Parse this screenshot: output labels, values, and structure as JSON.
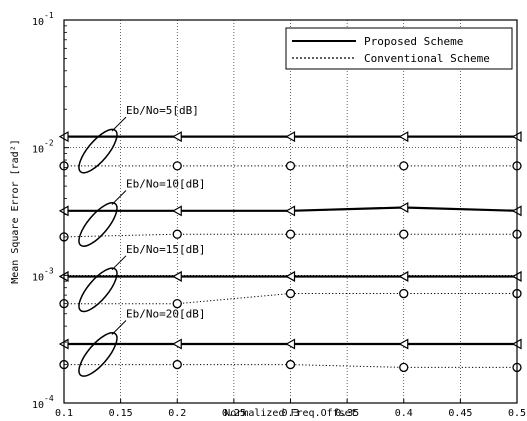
{
  "chart_data": {
    "type": "line",
    "title": "",
    "xlabel": "Normalized Freq.Offset",
    "ylabel": "Mean Square Error [rad²]",
    "x": [
      0.1,
      0.2,
      0.3,
      0.4,
      0.5
    ],
    "xlim": [
      0.1,
      0.5
    ],
    "ylim": [
      0.0001,
      0.1
    ],
    "y_scale": "log",
    "grid": true,
    "x_ticks": [
      "0.1",
      "0.15",
      "0.2",
      "0.25",
      "0.3",
      "0.35",
      "0.4",
      "0.45",
      "0.5"
    ],
    "y_ticks": [
      {
        "base": "10",
        "exp": "-4",
        "value": 0.0001
      },
      {
        "base": "10",
        "exp": "-3",
        "value": 0.001
      },
      {
        "base": "10",
        "exp": "-2",
        "value": 0.01
      },
      {
        "base": "10",
        "exp": "-1",
        "value": 0.1
      }
    ],
    "legend": {
      "position": "top-right",
      "entries": [
        {
          "label": "Proposed Scheme",
          "style": "solid"
        },
        {
          "label": "Conventional Scheme",
          "style": "dotted"
        }
      ]
    },
    "series": [
      {
        "group": "Eb/No=5[dB]",
        "style": "solid",
        "marker": "triangle",
        "values": [
          0.0122,
          0.0122,
          0.0122,
          0.0122,
          0.0122
        ]
      },
      {
        "group": "Eb/No=5[dB]",
        "style": "dotted",
        "marker": "circle",
        "values": [
          0.0072,
          0.0072,
          0.0072,
          0.0072,
          0.0072
        ]
      },
      {
        "group": "Eb/No=10[dB]",
        "style": "solid",
        "marker": "triangle",
        "values": [
          0.0032,
          0.0032,
          0.0032,
          0.0034,
          0.0032
        ]
      },
      {
        "group": "Eb/No=10[dB]",
        "style": "dotted",
        "marker": "circle",
        "values": [
          0.002,
          0.0021,
          0.0021,
          0.0021,
          0.0021
        ]
      },
      {
        "group": "Eb/No=15[dB]",
        "style": "solid",
        "marker": "triangle",
        "values": [
          0.00098,
          0.00098,
          0.00098,
          0.00098,
          0.00098
        ]
      },
      {
        "group": "Eb/No=15[dB]",
        "style": "dotted",
        "marker": "circle",
        "values": [
          0.0006,
          0.0006,
          0.00072,
          0.00072,
          0.00072
        ]
      },
      {
        "group": "Eb/No=20[dB]",
        "style": "solid",
        "marker": "triangle",
        "values": [
          0.00029,
          0.00029,
          0.00029,
          0.00029,
          0.00029
        ]
      },
      {
        "group": "Eb/No=20[dB]",
        "style": "dotted",
        "marker": "circle",
        "values": [
          0.0002,
          0.0002,
          0.0002,
          0.00019,
          0.00019
        ]
      }
    ],
    "annotations": [
      {
        "text": "Eb/No=5[dB]",
        "ellipse_center": [
          0.13,
          0.0094
        ]
      },
      {
        "text": "Eb/No=10[dB]",
        "ellipse_center": [
          0.13,
          0.0025
        ]
      },
      {
        "text": "Eb/No=15[dB]",
        "ellipse_center": [
          0.13,
          0.00077
        ]
      },
      {
        "text": "Eb/No=20[dB]",
        "ellipse_center": [
          0.13,
          0.00024
        ]
      }
    ]
  }
}
